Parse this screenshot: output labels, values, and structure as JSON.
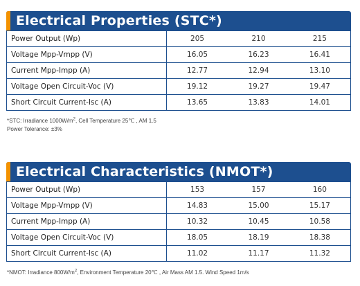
{
  "stc": {
    "title": "Electrical Properties (STC*)",
    "rows": [
      {
        "label": "Power Output (Wp)",
        "values": [
          "205",
          "210",
          "215"
        ]
      },
      {
        "label": "Voltage Mpp-Vmpp (V)",
        "values": [
          "16.05",
          "16.23",
          "16.41"
        ]
      },
      {
        "label": "Current Mpp-Impp (A)",
        "values": [
          "12.77",
          "12.94",
          "13.10"
        ]
      },
      {
        "label": "Voltage Open Circuit-Voc (V)",
        "values": [
          "19.12",
          "19.27",
          "19.47"
        ]
      },
      {
        "label": "Short Circuit Current-Isc (A)",
        "values": [
          "13.65",
          "13.83",
          "14.01"
        ]
      }
    ],
    "note_line1_prefix": "*STC: Irradiance 1000W/m",
    "note_line1_sup": "2",
    "note_line1_suffix": ", Cell Temperature 25℃ , AM 1.5",
    "note_line2": "Power Tolerance: ±3%"
  },
  "nmot": {
    "title": "Electrical Characteristics (NMOT*)",
    "rows": [
      {
        "label": "Power Output (Wp)",
        "values": [
          "153",
          "157",
          "160"
        ]
      },
      {
        "label": "Voltage Mpp-Vmpp (V)",
        "values": [
          "14.83",
          "15.00",
          "15.17"
        ]
      },
      {
        "label": "Current Mpp-Impp (A)",
        "values": [
          "10.32",
          "10.45",
          "10.58"
        ]
      },
      {
        "label": "Voltage Open Circuit-Voc (V)",
        "values": [
          "18.05",
          "18.19",
          "18.38"
        ]
      },
      {
        "label": "Short Circuit Current-Isc (A)",
        "values": [
          "11.02",
          "11.17",
          "11.32"
        ]
      }
    ],
    "note_prefix": "*NMOT: Irradiance 800W/m",
    "note_sup": "2",
    "note_suffix": ", Environment Temperature 20℃ , Air Mass AM 1.5.  Wind Speed 1m/s"
  },
  "colors": {
    "header_bg": "#1d4f8f",
    "accent": "#f39200",
    "border": "#1d4f8f"
  }
}
